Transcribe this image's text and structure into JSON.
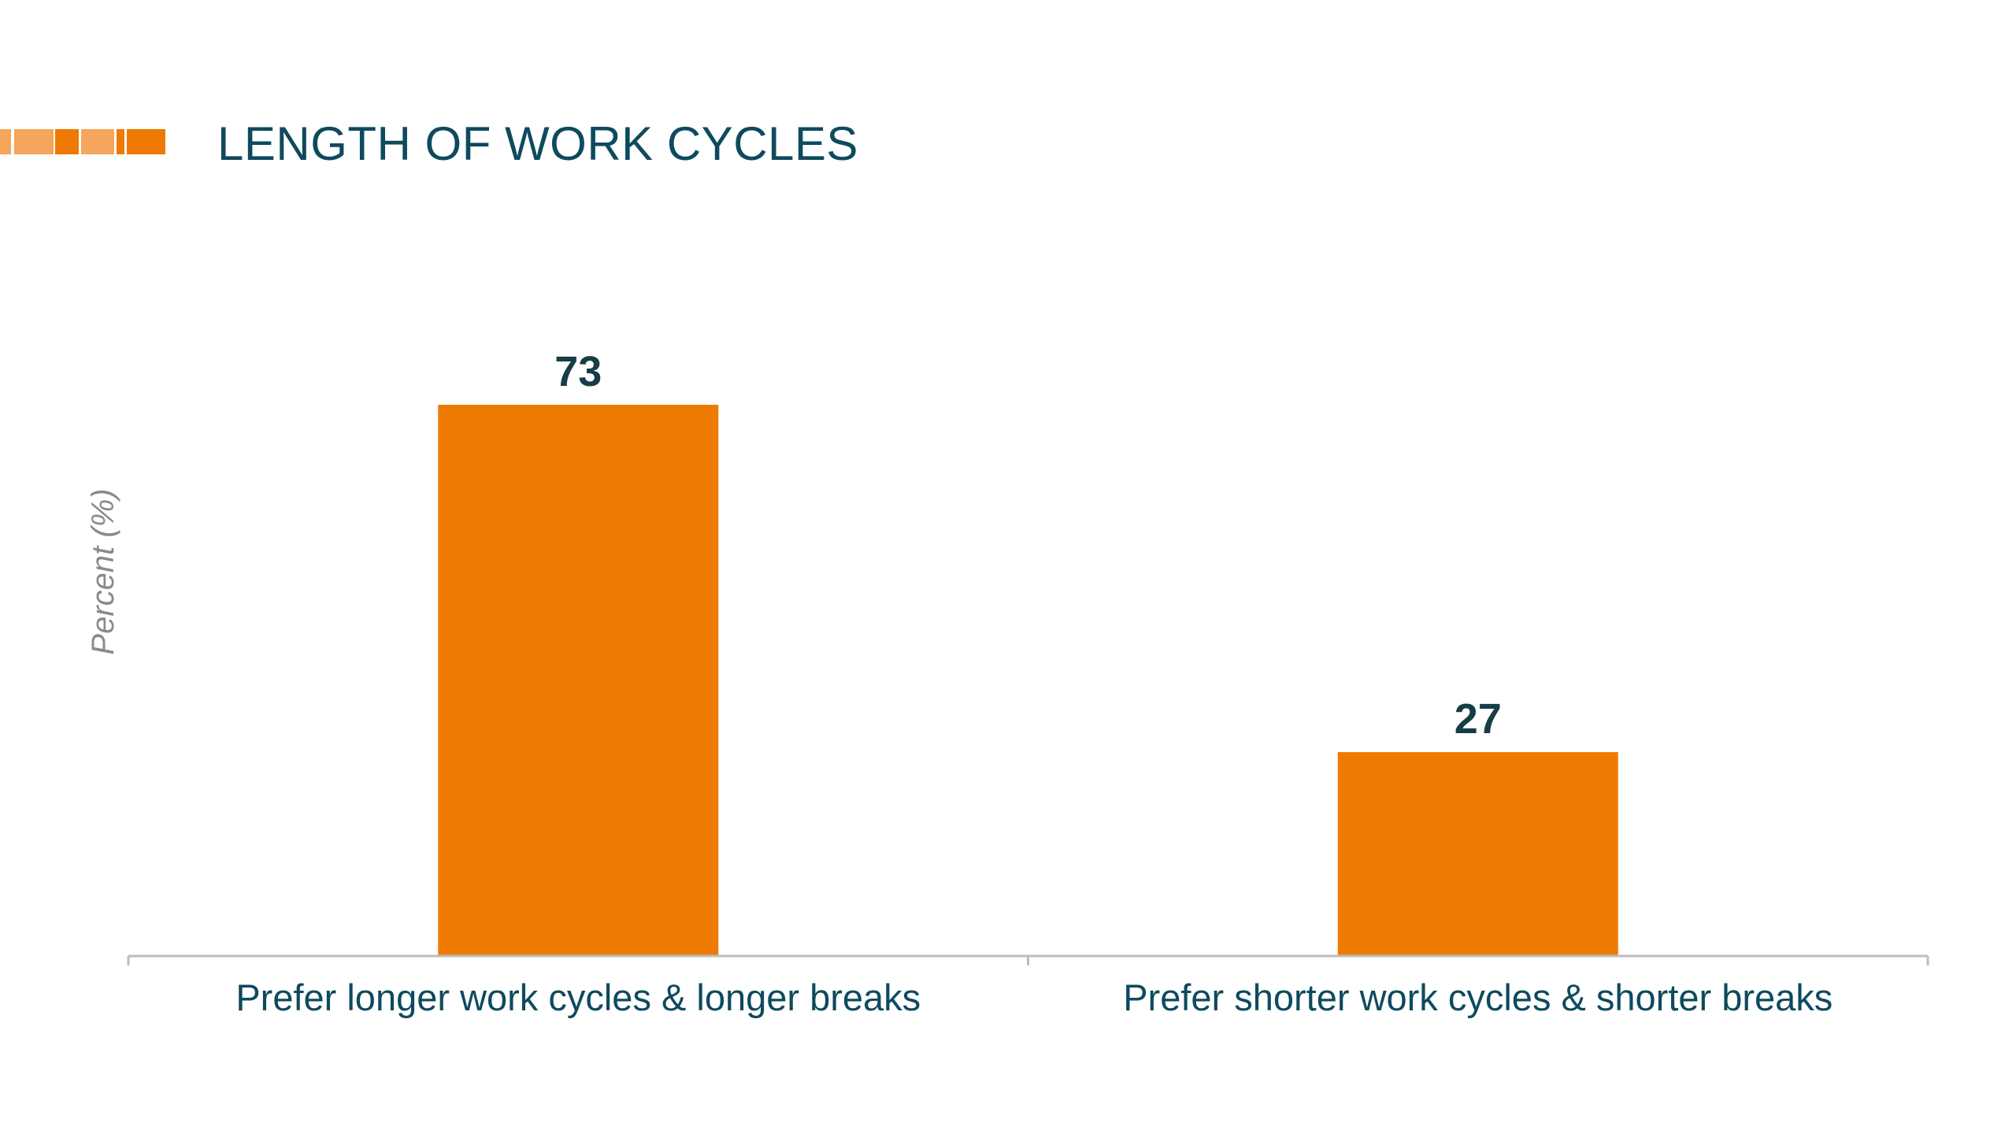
{
  "slide": {
    "title": "LENGTH OF WORK CYCLES"
  },
  "colors": {
    "bar": "#ee7a03",
    "title": "#0e4a5e",
    "value_label": "#173d47",
    "category_label": "#0e4a5e",
    "axis_label": "#8a8a8a",
    "axis_line": "#bdbdbd",
    "accent_light": "#f5a55c",
    "accent_dark": "#ee7a03"
  },
  "chart_data": {
    "type": "bar",
    "categories": [
      "Prefer longer work cycles & longer breaks",
      "Prefer shorter work cycles & shorter breaks"
    ],
    "values": [
      73,
      27
    ],
    "value_labels": [
      "73",
      "27"
    ],
    "title": "LENGTH OF WORK CYCLES",
    "xlabel": "",
    "ylabel": "Percent (%)",
    "ylim": [
      0,
      73
    ],
    "grid": false,
    "legend": "none"
  }
}
